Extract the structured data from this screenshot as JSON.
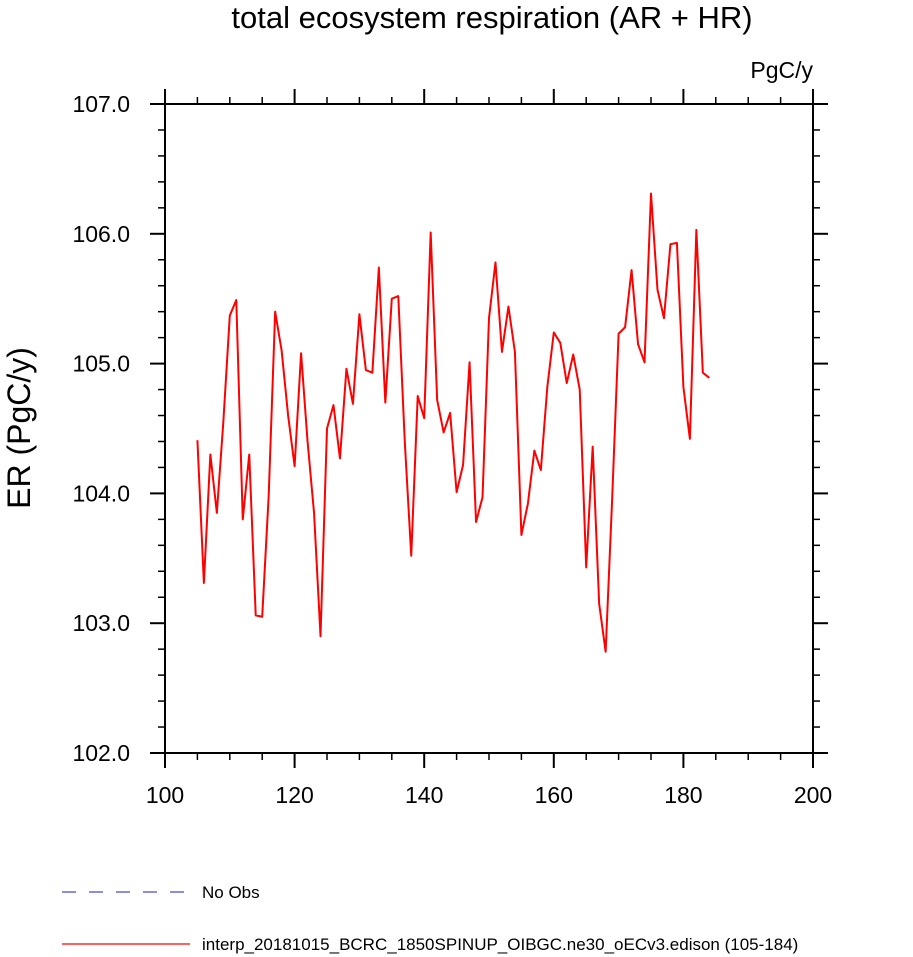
{
  "chart_data": {
    "type": "line",
    "title": "total ecosystem respiration (AR + HR)",
    "units": "PgC/y",
    "xlabel": "",
    "ylabel": "ER  (PgC/y)",
    "xlim": [
      100,
      200
    ],
    "ylim": [
      102.0,
      107.0
    ],
    "xticks": [
      100,
      120,
      140,
      160,
      180,
      200
    ],
    "xtick_labels": [
      "100",
      "120",
      "140",
      "160",
      "180",
      "200"
    ],
    "yticks": [
      102.0,
      103.0,
      104.0,
      105.0,
      106.0,
      107.0
    ],
    "ytick_labels": [
      "102.0",
      "103.0",
      "104.0",
      "105.0",
      "106.0",
      "107.0"
    ],
    "grid": false,
    "legend_position": "bottom",
    "series": [
      {
        "name": "interp_20181015_BCRC_1850SPINUP_OIBGC.ne30_oECv3.edison (105-184)",
        "color": "#ff0000",
        "style": "solid",
        "x": [
          105,
          106,
          107,
          108,
          109,
          110,
          111,
          112,
          113,
          114,
          115,
          116,
          117,
          118,
          119,
          120,
          121,
          122,
          123,
          124,
          125,
          126,
          127,
          128,
          129,
          130,
          131,
          132,
          133,
          134,
          135,
          136,
          137,
          138,
          139,
          140,
          141,
          142,
          143,
          144,
          145,
          146,
          147,
          148,
          149,
          150,
          151,
          152,
          153,
          154,
          155,
          156,
          157,
          158,
          159,
          160,
          161,
          162,
          163,
          164,
          165,
          166,
          167,
          168,
          169,
          170,
          171,
          172,
          173,
          174,
          175,
          176,
          177,
          178,
          179,
          180,
          181,
          182,
          183,
          184
        ],
        "values": [
          104.41,
          103.31,
          104.3,
          103.85,
          104.55,
          105.37,
          105.49,
          103.8,
          104.3,
          103.06,
          103.05,
          103.98,
          105.4,
          105.1,
          104.6,
          104.21,
          105.08,
          104.4,
          103.85,
          102.9,
          104.5,
          104.68,
          104.27,
          104.96,
          104.69,
          105.38,
          104.95,
          104.93,
          105.74,
          104.7,
          105.5,
          105.52,
          104.4,
          103.52,
          104.75,
          104.58,
          106.01,
          104.72,
          104.47,
          104.62,
          104.01,
          104.22,
          105.01,
          103.78,
          103.97,
          105.35,
          105.78,
          105.09,
          105.44,
          105.09,
          103.68,
          103.92,
          104.33,
          104.18,
          104.82,
          105.24,
          105.16,
          104.85,
          105.07,
          104.8,
          103.43,
          104.36,
          103.15,
          102.78,
          103.95,
          105.23,
          105.28,
          105.72,
          105.15,
          105.01,
          106.31,
          105.57,
          105.35,
          105.92,
          105.93,
          104.82,
          104.42,
          106.03,
          104.93,
          104.89
        ]
      },
      {
        "name": "No Obs",
        "color": "#4b4bcf",
        "style": "dashed",
        "x": [],
        "values": []
      }
    ]
  }
}
